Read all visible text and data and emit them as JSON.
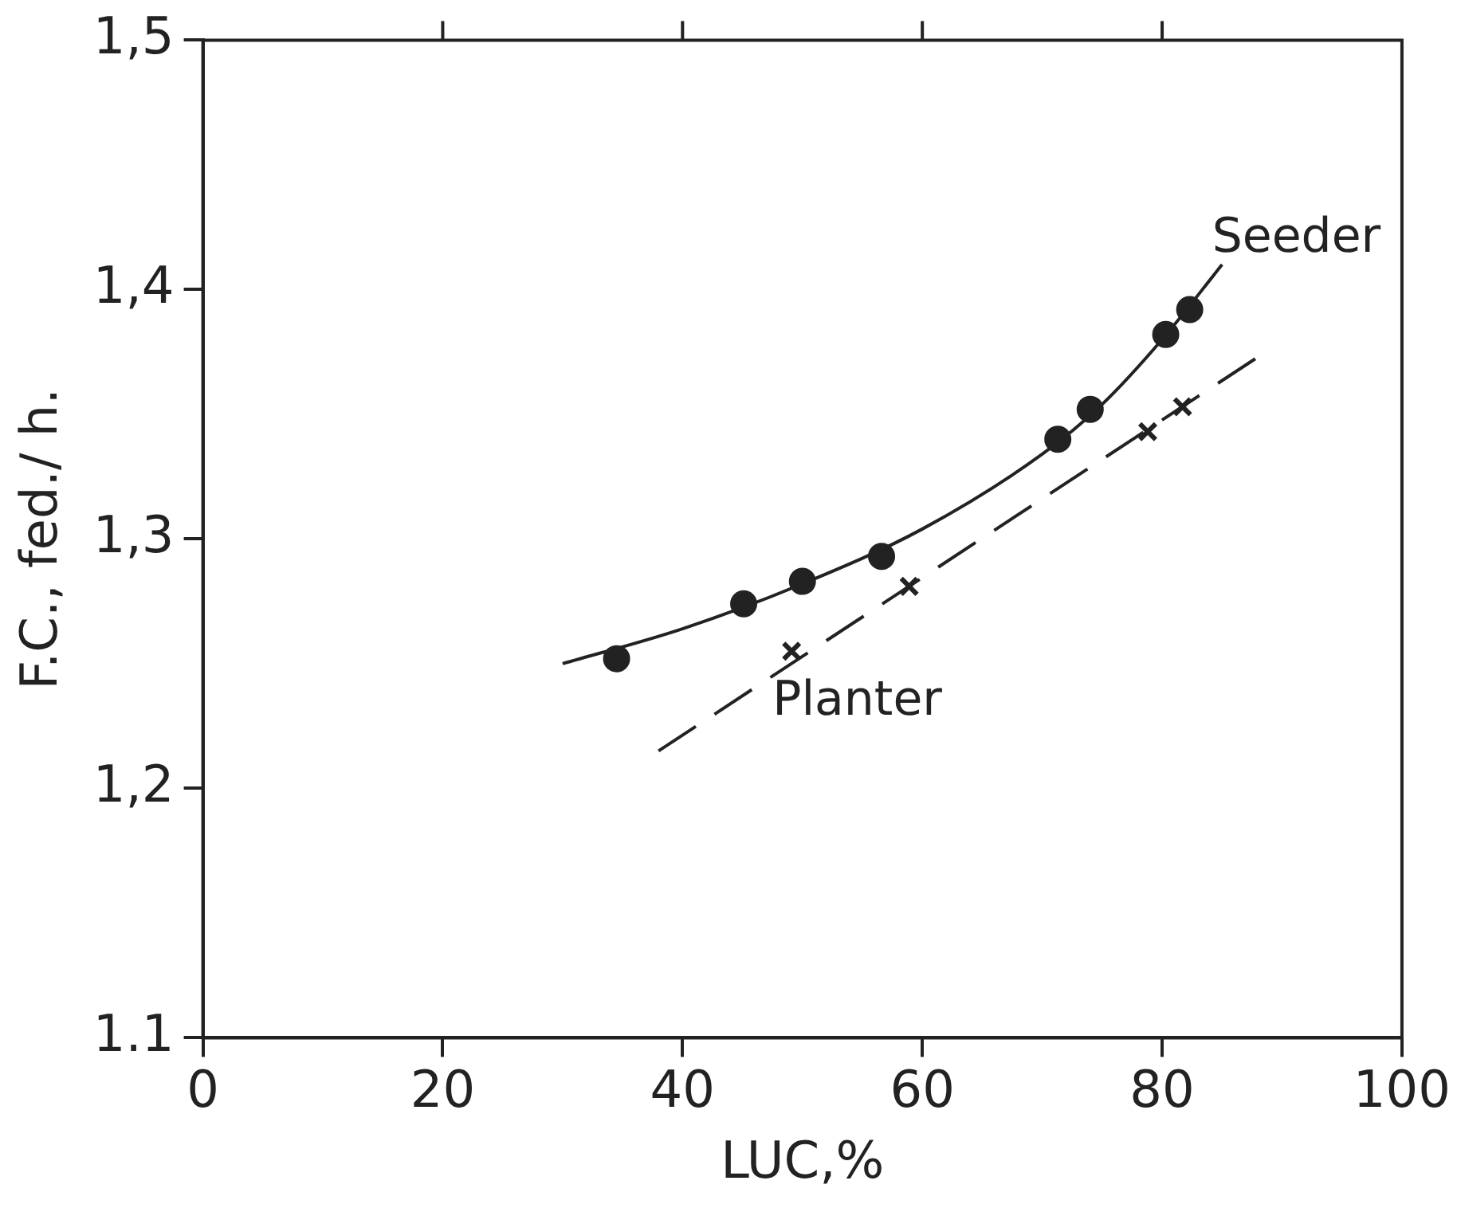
{
  "chart_data": {
    "type": "scatter",
    "xlabel": "LUC,%",
    "ylabel": "F.C., fed./ h.",
    "xlim": [
      0,
      100
    ],
    "xticks": [
      0,
      20,
      40,
      60,
      80,
      100
    ],
    "ylim": [
      1.1,
      1.5
    ],
    "yticks": [
      {
        "value": 1.1,
        "label": "1.1"
      },
      {
        "value": 1.2,
        "label": "1,2"
      },
      {
        "value": 1.3,
        "label": "1,3"
      },
      {
        "value": 1.4,
        "label": "1,4"
      },
      {
        "value": 1.5,
        "label": "1,5"
      }
    ],
    "grid": false,
    "legend": false,
    "series": [
      {
        "type": "scatter",
        "name": "Seeder",
        "marker": "circle",
        "color": "#222222",
        "x": [
          34.5,
          45.1,
          50,
          56.6,
          71.3,
          74,
          80.3,
          82.3
        ],
        "values": [
          1.252,
          1.274,
          1.283,
          1.293,
          1.34,
          1.352,
          1.382,
          1.392
        ]
      },
      {
        "type": "line",
        "marker": "none",
        "line_style": "solid",
        "color": "#222222",
        "x": [
          30,
          40,
          50,
          60,
          70,
          75,
          80,
          85
        ],
        "values": [
          1.25,
          1.264,
          1.282,
          1.304,
          1.334,
          1.354,
          1.38,
          1.41
        ]
      },
      {
        "type": "scatter",
        "name": "Planter",
        "marker": "cross",
        "color": "#222222",
        "x": [
          49.1,
          58.9,
          78.8,
          81.7
        ],
        "values": [
          1.255,
          1.281,
          1.343,
          1.353
        ]
      },
      {
        "type": "line",
        "marker": "none",
        "line_style": "dashed",
        "color": "#222222",
        "x": [
          38,
          88
        ],
        "values": [
          1.215,
          1.373
        ]
      }
    ]
  }
}
